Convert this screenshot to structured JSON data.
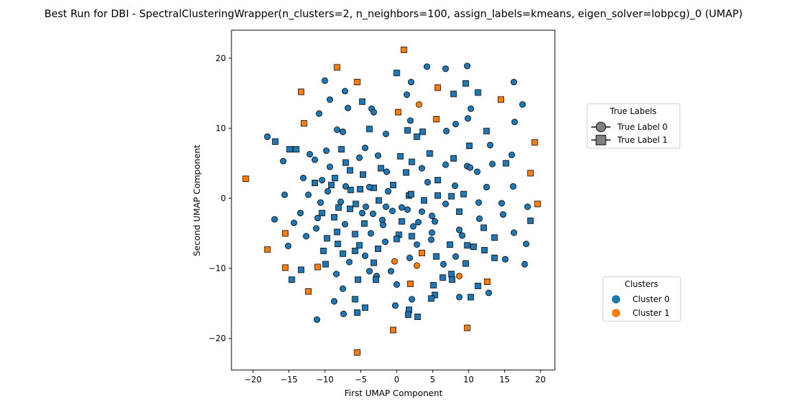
{
  "chart_data": {
    "type": "scatter",
    "title": "Best Run for DBI - SpectralClusteringWrapper(n_clusters=2, n_neighbors=100, assign_labels=kmeans, eigen_solver=lobpcg)_0 (UMAP)",
    "xlabel": "First UMAP Component",
    "ylabel": "Second UMAP Component",
    "xlim": [
      -23,
      22
    ],
    "ylim": [
      -24.5,
      24
    ],
    "xticks": [
      -20,
      -15,
      -10,
      -5,
      0,
      5,
      10,
      15,
      20
    ],
    "yticks": [
      -20,
      -10,
      0,
      10,
      20
    ],
    "grid": false,
    "colors": {
      "cluster0": "#1f77b4",
      "cluster1": "#ff7f0e",
      "edge": "#000000",
      "legend_marker": "#808080"
    },
    "legend_true_labels": {
      "title": "True Labels",
      "placement": "right-upper",
      "entries": [
        {
          "label": "True Label 0",
          "marker": "circle"
        },
        {
          "label": "True Label 1",
          "marker": "square"
        }
      ]
    },
    "legend_clusters": {
      "title": "Clusters",
      "placement": "right-lower",
      "entries": [
        {
          "label": "Cluster 0",
          "color": "#1f77b4"
        },
        {
          "label": "Cluster 1",
          "color": "#ff7f0e"
        }
      ]
    },
    "series": [
      {
        "cluster": 1,
        "color": "#ff7f0e",
        "points": [
          [
            1,
            21.2,
            "s"
          ],
          [
            -8.3,
            18.7,
            "s"
          ],
          [
            -5.5,
            16.6,
            "s"
          ],
          [
            -13.3,
            15.2,
            "s"
          ],
          [
            5.7,
            15.8,
            "s"
          ],
          [
            14.5,
            14.1,
            "s"
          ],
          [
            3.1,
            13.4,
            "o"
          ],
          [
            0.2,
            12.3,
            "s"
          ],
          [
            5.5,
            11.3,
            "s"
          ],
          [
            -12.9,
            10.7,
            "s"
          ],
          [
            19.2,
            8.0,
            "s"
          ],
          [
            -21,
            2.8,
            "s"
          ],
          [
            18.6,
            3.6,
            "s"
          ],
          [
            19.6,
            -0.8,
            "s"
          ],
          [
            -15.5,
            -5.0,
            "s"
          ],
          [
            -18,
            -7.3,
            "s"
          ],
          [
            3.5,
            -7.8,
            "s"
          ],
          [
            -0.3,
            -9.0,
            "o"
          ],
          [
            2.8,
            -9.6,
            "o"
          ],
          [
            -15.5,
            -9.9,
            "s"
          ],
          [
            -11,
            -9.8,
            "s"
          ],
          [
            8.7,
            -11.1,
            "o"
          ],
          [
            1.9,
            -12.2,
            "s"
          ],
          [
            12.6,
            -11.9,
            "s"
          ],
          [
            -12.3,
            -13.3,
            "s"
          ],
          [
            -0.5,
            -18.8,
            "s"
          ],
          [
            9.8,
            -18.5,
            "s"
          ],
          [
            -5.5,
            -22.0,
            "s"
          ]
        ]
      },
      {
        "cluster": 0,
        "color": "#1f77b4",
        "points": [
          [
            0,
            17.9,
            "s"
          ],
          [
            -10,
            16.8,
            "o"
          ],
          [
            -7.2,
            15.3,
            "o"
          ],
          [
            2,
            16.6,
            "o"
          ],
          [
            4.2,
            18.8,
            "o"
          ],
          [
            6.8,
            18.5,
            "o"
          ],
          [
            9.8,
            18.9,
            "o"
          ],
          [
            9.6,
            16.4,
            "s"
          ],
          [
            16.3,
            16.6,
            "o"
          ],
          [
            11.3,
            15.1,
            "s"
          ],
          [
            -9.3,
            14.1,
            "o"
          ],
          [
            1.4,
            14.8,
            "o"
          ],
          [
            -4.8,
            13.8,
            "s"
          ],
          [
            7.9,
            14.9,
            "s"
          ],
          [
            -3.5,
            12.8,
            "o"
          ],
          [
            -3.2,
            12.3,
            "o"
          ],
          [
            -6.8,
            12.9,
            "o"
          ],
          [
            10.3,
            12.8,
            "o"
          ],
          [
            17.5,
            13.4,
            "o"
          ],
          [
            -10.8,
            12.1,
            "o"
          ],
          [
            1.9,
            11.1,
            "o"
          ],
          [
            8.2,
            10.6,
            "o"
          ],
          [
            9.9,
            11.4,
            "o"
          ],
          [
            -8.3,
            9.8,
            "o"
          ],
          [
            -7.5,
            9.5,
            "o"
          ],
          [
            -3.8,
            9.9,
            "s"
          ],
          [
            -1.5,
            9.2,
            "o"
          ],
          [
            1.5,
            9.7,
            "s"
          ],
          [
            3.6,
            9.5,
            "s"
          ],
          [
            6.9,
            9.6,
            "o"
          ],
          [
            12.5,
            9.6,
            "s"
          ],
          [
            16.4,
            10.9,
            "o"
          ],
          [
            -18,
            8.8,
            "o"
          ],
          [
            -16.9,
            8.1,
            "s"
          ],
          [
            2.8,
            8.8,
            "s"
          ],
          [
            -4.4,
            7.2,
            "o"
          ],
          [
            -7.7,
            7.0,
            "s"
          ],
          [
            -9.8,
            6.8,
            "o"
          ],
          [
            -14,
            7.0,
            "s"
          ],
          [
            10.1,
            7.5,
            "s"
          ],
          [
            13,
            7.6,
            "o"
          ],
          [
            -2.6,
            6.1,
            "o"
          ],
          [
            -5.2,
            5.8,
            "o"
          ],
          [
            0.5,
            6.0,
            "s"
          ],
          [
            2.1,
            5.2,
            "s"
          ],
          [
            4.6,
            6.4,
            "s"
          ],
          [
            7.9,
            5.7,
            "s"
          ],
          [
            16,
            6.2,
            "o"
          ],
          [
            -15.8,
            5.3,
            "o"
          ],
          [
            -11.4,
            5.5,
            "o"
          ],
          [
            -7.1,
            5.1,
            "s"
          ],
          [
            -9.3,
            4.5,
            "o"
          ],
          [
            3.5,
            4.3,
            "o"
          ],
          [
            6.8,
            4.8,
            "o"
          ],
          [
            9.8,
            4.6,
            "o"
          ],
          [
            13.3,
            4.9,
            "o"
          ],
          [
            15.2,
            5.0,
            "s"
          ],
          [
            -6.5,
            4.0,
            "s"
          ],
          [
            -4.7,
            3.4,
            "s"
          ],
          [
            -1.4,
            3.8,
            "o"
          ],
          [
            1.3,
            3.7,
            "s"
          ],
          [
            11.2,
            3.8,
            "o"
          ],
          [
            -13,
            2.9,
            "o"
          ],
          [
            -10.4,
            2.6,
            "o"
          ],
          [
            -8.6,
            2.9,
            "s"
          ],
          [
            5.7,
            2.6,
            "s"
          ],
          [
            16.2,
            1.7,
            "o"
          ],
          [
            -11.4,
            2.2,
            "s"
          ],
          [
            -9.1,
            1.9,
            "s"
          ],
          [
            -7.1,
            1.7,
            "o"
          ],
          [
            -5.1,
            1.3,
            "s"
          ],
          [
            -3.2,
            1.5,
            "s"
          ],
          [
            -0.5,
            1.9,
            "s"
          ],
          [
            4.3,
            2.3,
            "o"
          ],
          [
            8.1,
            1.8,
            "o"
          ],
          [
            12.5,
            1.6,
            "o"
          ],
          [
            -9.6,
            1.0,
            "o"
          ],
          [
            -6.4,
            1.2,
            "s"
          ],
          [
            -3.8,
            1.6,
            "o"
          ],
          [
            -15.6,
            0.5,
            "o"
          ],
          [
            -12.3,
            0.5,
            "o"
          ],
          [
            -1.2,
            1.0,
            "o"
          ],
          [
            1.7,
            0.4,
            "s"
          ],
          [
            5.7,
            0.4,
            "s"
          ],
          [
            7.6,
            0.3,
            "s"
          ],
          [
            9.3,
            0.6,
            "s"
          ],
          [
            -7.8,
            -0.5,
            "o"
          ],
          [
            -5.7,
            -0.8,
            "s"
          ],
          [
            -2.5,
            -0.3,
            "s"
          ],
          [
            3.8,
            -0.3,
            "s"
          ],
          [
            -10.6,
            -0.6,
            "o"
          ],
          [
            6.8,
            -0.8,
            "o"
          ],
          [
            11.4,
            -0.6,
            "o"
          ],
          [
            14.6,
            -0.7,
            "o"
          ],
          [
            -4.3,
            -1.2,
            "o"
          ],
          [
            0.7,
            -1.3,
            "o"
          ],
          [
            18.2,
            -1.2,
            "o"
          ],
          [
            -8.1,
            -1.3,
            "s"
          ],
          [
            -6.5,
            -1.5,
            "s"
          ],
          [
            -0.6,
            -1.8,
            "o"
          ],
          [
            1.5,
            -1.6,
            "o"
          ],
          [
            3.5,
            -1.9,
            "o"
          ],
          [
            4.9,
            -2.5,
            "o"
          ],
          [
            8.7,
            -1.9,
            "s"
          ],
          [
            -13.4,
            -2.1,
            "o"
          ],
          [
            -4.8,
            -2.1,
            "o"
          ],
          [
            -10.4,
            -2.1,
            "s"
          ],
          [
            -8.7,
            -2.7,
            "s"
          ],
          [
            -3.3,
            -2.2,
            "o"
          ],
          [
            14.8,
            -2.3,
            "o"
          ],
          [
            -11,
            -2.8,
            "o"
          ],
          [
            11.5,
            -2.9,
            "o"
          ],
          [
            -17,
            -3.0,
            "o"
          ],
          [
            -2,
            -3.1,
            "o"
          ],
          [
            -7.2,
            -3.7,
            "o"
          ],
          [
            3,
            -3.4,
            "o"
          ],
          [
            5.3,
            -3.3,
            "o"
          ],
          [
            18.6,
            -3.2,
            "s"
          ],
          [
            -14.3,
            -3.5,
            "o"
          ],
          [
            -4.5,
            -3.6,
            "s"
          ],
          [
            -1.9,
            -3.8,
            "o"
          ],
          [
            0.7,
            -3.3,
            "s"
          ],
          [
            2.3,
            -4.0,
            "o"
          ],
          [
            -11.2,
            -4.3,
            "o"
          ],
          [
            -8.3,
            -4.8,
            "s"
          ],
          [
            8.7,
            -4.5,
            "o"
          ],
          [
            12.1,
            -4.2,
            "s"
          ],
          [
            -5.8,
            -5.1,
            "s"
          ],
          [
            4.9,
            -4.9,
            "o"
          ],
          [
            0.3,
            -5.2,
            "s"
          ],
          [
            -3.6,
            -5.0,
            "o"
          ],
          [
            16.3,
            -4.9,
            "o"
          ],
          [
            -12.6,
            -5.4,
            "o"
          ],
          [
            2.1,
            -5.4,
            "s"
          ],
          [
            9.1,
            -5.3,
            "o"
          ],
          [
            13.6,
            -5.6,
            "s"
          ],
          [
            -9.7,
            -5.7,
            "s"
          ],
          [
            0,
            -5.8,
            "s"
          ],
          [
            4.8,
            -5.9,
            "o"
          ],
          [
            -1.6,
            -6.2,
            "o"
          ],
          [
            -15.1,
            -6.8,
            "o"
          ],
          [
            -8.2,
            -6.5,
            "s"
          ],
          [
            -5.2,
            -6.7,
            "s"
          ],
          [
            7.4,
            -6.6,
            "s"
          ],
          [
            9.8,
            -6.7,
            "s"
          ],
          [
            -2.6,
            -7.2,
            "s"
          ],
          [
            2.8,
            -6.6,
            "o"
          ],
          [
            10.7,
            -6.9,
            "s"
          ],
          [
            12.2,
            -7.4,
            "s"
          ],
          [
            18,
            -6.5,
            "o"
          ],
          [
            -10.2,
            -7.5,
            "s"
          ],
          [
            -7.5,
            -7.9,
            "s"
          ],
          [
            -5.8,
            -7.5,
            "s"
          ],
          [
            -4.4,
            -8.2,
            "o"
          ],
          [
            1.8,
            -8.5,
            "o"
          ],
          [
            5.5,
            -8.3,
            "s"
          ],
          [
            8.2,
            -8.3,
            "o"
          ],
          [
            13.6,
            -8.5,
            "s"
          ],
          [
            15.1,
            -8.7,
            "o"
          ],
          [
            -9.9,
            -9.4,
            "s"
          ],
          [
            -6.6,
            -9.1,
            "o"
          ],
          [
            -3.2,
            -9.2,
            "s"
          ],
          [
            6.5,
            -9.4,
            "o"
          ],
          [
            9.6,
            -9.3,
            "s"
          ],
          [
            17.8,
            -9.4,
            "o"
          ],
          [
            -13.3,
            -10.2,
            "s"
          ],
          [
            -3.8,
            -10.4,
            "o"
          ],
          [
            -0.8,
            -10.4,
            "o"
          ],
          [
            -2.8,
            -11.1,
            "o"
          ],
          [
            7.6,
            -10.8,
            "s"
          ],
          [
            -8.4,
            -10.8,
            "o"
          ],
          [
            6.4,
            -11.3,
            "s"
          ],
          [
            -14.6,
            -11.6,
            "s"
          ],
          [
            -5.4,
            -11.6,
            "s"
          ],
          [
            -2.9,
            -11.6,
            "s"
          ],
          [
            7.7,
            -11.6,
            "s"
          ],
          [
            0,
            -12.3,
            "o"
          ],
          [
            5.1,
            -12.4,
            "s"
          ],
          [
            11.3,
            -12.5,
            "s"
          ],
          [
            -7.5,
            -12.9,
            "o"
          ],
          [
            5.3,
            -13.8,
            "s"
          ],
          [
            12.8,
            -13.5,
            "o"
          ],
          [
            -8.7,
            -14.7,
            "o"
          ],
          [
            -5.8,
            -14.4,
            "s"
          ],
          [
            2.1,
            -14.4,
            "o"
          ],
          [
            4.8,
            -14.3,
            "s"
          ],
          [
            8.7,
            -14.1,
            "o"
          ],
          [
            10.3,
            -14.1,
            "s"
          ],
          [
            -0.2,
            -15.3,
            "o"
          ],
          [
            -4.4,
            -15.6,
            "s"
          ],
          [
            1.7,
            -15.9,
            "s"
          ],
          [
            -5.5,
            -16.3,
            "s"
          ],
          [
            -7.4,
            -16.5,
            "o"
          ],
          [
            1.6,
            -16.6,
            "s"
          ],
          [
            2.9,
            -16.9,
            "s"
          ],
          [
            -11.1,
            -17.3,
            "o"
          ],
          [
            -14.9,
            7.0,
            "s"
          ],
          [
            -12.1,
            6.3,
            "o"
          ],
          [
            10.2,
            4.4,
            "o"
          ],
          [
            -2.2,
            4.3,
            "s"
          ],
          [
            2,
            0.6,
            "s"
          ],
          [
            -1.5,
            -1.2,
            "o"
          ]
        ]
      }
    ]
  }
}
